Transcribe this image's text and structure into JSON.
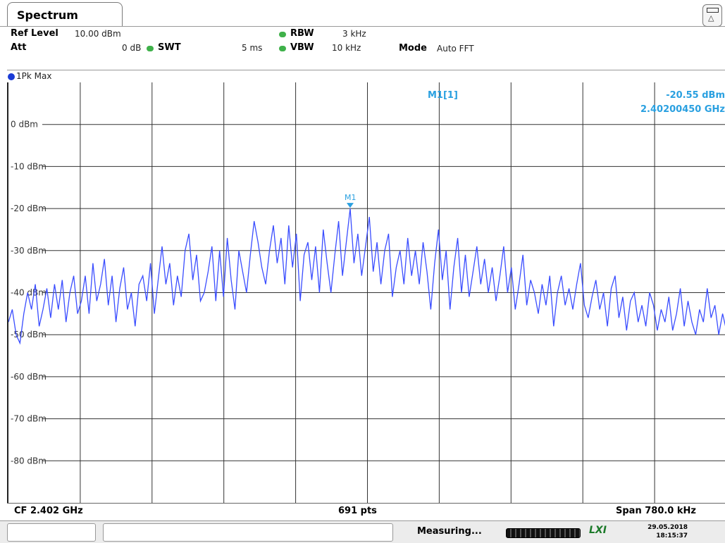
{
  "tab": {
    "title": "Spectrum"
  },
  "settings": {
    "ref_level_label": "Ref Level",
    "ref_level_value": "10.00 dBm",
    "att_label": "Att",
    "att_value": "0 dB",
    "swt_label": "SWT",
    "swt_value": "5 ms",
    "rbw_label": "RBW",
    "rbw_value": "3 kHz",
    "vbw_label": "VBW",
    "vbw_value": "10 kHz",
    "mode_label": "Mode",
    "mode_value": "Auto FFT"
  },
  "trace": {
    "label": "1Pk Max",
    "color": "#3a4dff"
  },
  "marker": {
    "label": "M1",
    "readout_name": "M1[1]",
    "readout_level": "-20.55 dBm",
    "readout_freq": "2.40200450 GHz",
    "color": "#2aa0e0"
  },
  "footer": {
    "cf": "CF 2.402 GHz",
    "pts": "691 pts",
    "span": "Span 780.0 kHz"
  },
  "status": {
    "measuring": "Measuring...",
    "date": "29.05.2018",
    "time": "18:15:37",
    "lxi": "LXI"
  },
  "chart_data": {
    "type": "line",
    "title": "",
    "xlabel": "",
    "ylabel": "",
    "ylim": [
      -90,
      10
    ],
    "y_ticks": [
      "0 dBm",
      "-10 dBm",
      "-20 dBm",
      "-30 dBm",
      "-40 dBm",
      "-50 dBm",
      "-60 dBm",
      "-70 dBm",
      "-80 dBm"
    ],
    "y_tick_values": [
      0,
      -10,
      -20,
      -30,
      -40,
      -50,
      -60,
      -70,
      -80
    ],
    "xlim": [
      2.40161,
      2.40239
    ],
    "x_unit": "GHz",
    "grid": true,
    "series": [
      {
        "values": [
          -47,
          -44,
          -50,
          -52,
          -45,
          -40,
          -44,
          -38,
          -48,
          -44,
          -39,
          -46,
          -38,
          -44,
          -37,
          -47,
          -40,
          -36,
          -45,
          -42,
          -36,
          -45,
          -33,
          -42,
          -38,
          -32,
          -43,
          -36,
          -47,
          -39,
          -34,
          -44,
          -40,
          -48,
          -38,
          -36,
          -42,
          -33,
          -45,
          -37,
          -29,
          -38,
          -33,
          -43,
          -36,
          -41,
          -30,
          -26,
          -37,
          -31,
          -42,
          -40,
          -35,
          -29,
          -42,
          -30,
          -41,
          -27,
          -37,
          -44,
          -30,
          -35,
          -40,
          -31,
          -23,
          -28,
          -34,
          -38,
          -30,
          -24,
          -33,
          -27,
          -38,
          -24,
          -34,
          -26,
          -42,
          -31,
          -28,
          -37,
          -29,
          -40,
          -25,
          -33,
          -40,
          -31,
          -23,
          -36,
          -28,
          -20,
          -33,
          -26,
          -36,
          -29,
          -22,
          -35,
          -28,
          -38,
          -30,
          -26,
          -41,
          -34,
          -30,
          -38,
          -27,
          -36,
          -30,
          -38,
          -28,
          -35,
          -44,
          -33,
          -25,
          -37,
          -30,
          -44,
          -34,
          -27,
          -40,
          -31,
          -41,
          -35,
          -29,
          -38,
          -32,
          -40,
          -34,
          -42,
          -36,
          -29,
          -40,
          -34,
          -44,
          -38,
          -31,
          -43,
          -37,
          -40,
          -45,
          -38,
          -43,
          -36,
          -48,
          -40,
          -36,
          -43,
          -39,
          -44,
          -38,
          -33,
          -43,
          -46,
          -41,
          -37,
          -44,
          -40,
          -48,
          -39,
          -36,
          -46,
          -41,
          -49,
          -42,
          -40,
          -47,
          -43,
          -48,
          -40,
          -43,
          -49,
          -44,
          -47,
          -41,
          -49,
          -45,
          -39,
          -48,
          -42,
          -47,
          -50,
          -44,
          -47,
          -39,
          -46,
          -43,
          -50,
          -45,
          -49
        ]
      }
    ]
  }
}
